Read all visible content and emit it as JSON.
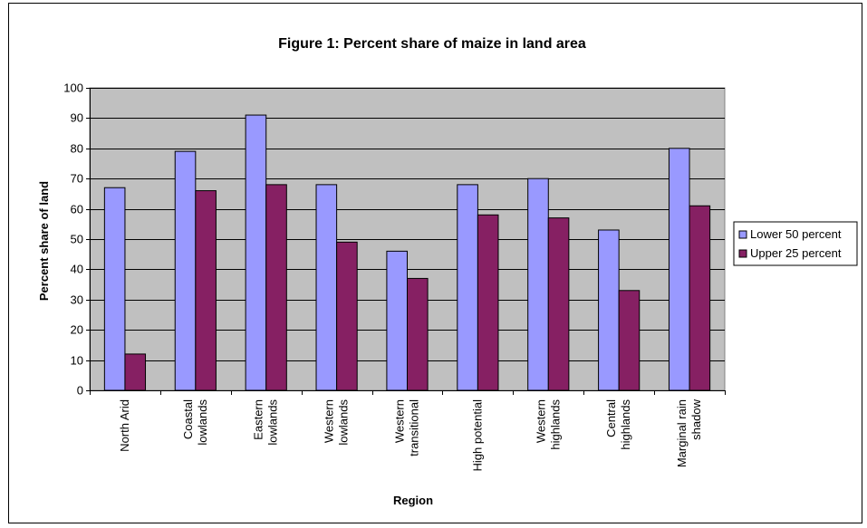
{
  "chart_data": {
    "type": "bar",
    "title": "Figure 1: Percent share of maize in land area",
    "xlabel": "Region",
    "ylabel": "Percent share of land",
    "ylim": [
      0,
      100
    ],
    "yticks": [
      0,
      10,
      20,
      30,
      40,
      50,
      60,
      70,
      80,
      90,
      100
    ],
    "grid": true,
    "legend_position": "right",
    "categories": [
      [
        "North Arid"
      ],
      [
        "Coastal",
        "lowlands"
      ],
      [
        "Eastern",
        "lowlands"
      ],
      [
        "Western",
        "lowlands"
      ],
      [
        "Western",
        "transitional"
      ],
      [
        "High potential"
      ],
      [
        "Western",
        "highlands"
      ],
      [
        "Central",
        "highlands"
      ],
      [
        "Marginal rain",
        "shadow"
      ]
    ],
    "series": [
      {
        "name": "Lower 50 percent",
        "color": "#9999ff",
        "values": [
          67,
          79,
          91,
          68,
          46,
          68,
          70,
          53,
          80
        ]
      },
      {
        "name": "Upper 25 percent",
        "color": "#862063",
        "values": [
          12,
          66,
          68,
          49,
          37,
          58,
          57,
          33,
          61
        ]
      }
    ],
    "plot_background": "#c0c0c0"
  }
}
